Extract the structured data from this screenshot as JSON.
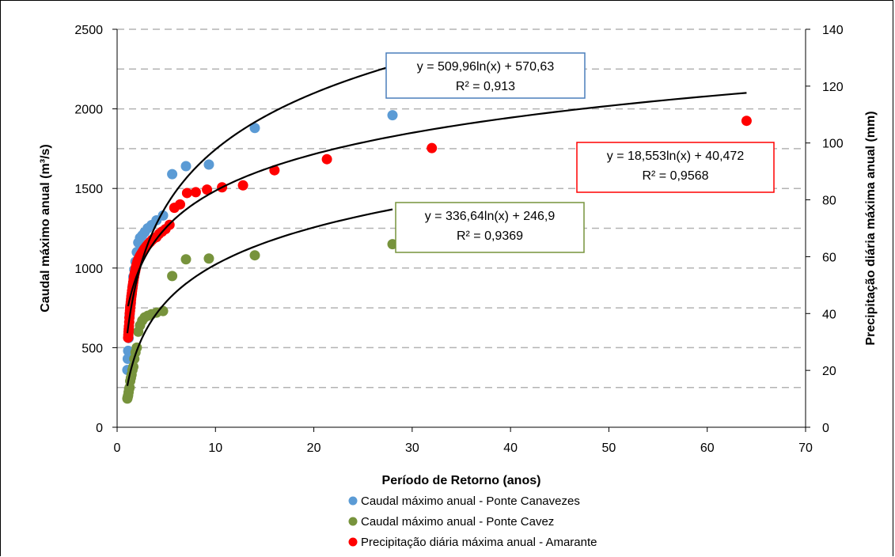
{
  "chart_data": {
    "type": "scatter",
    "xlabel": "Período de Retorno (anos)",
    "ylabel_left": "Caudal máximo anual (m³/s)",
    "ylabel_right": "Precipitação diária máxima anual (mm)",
    "xlim": [
      0,
      70
    ],
    "ylim_left": [
      0,
      2500
    ],
    "ylim_right": [
      0,
      140
    ],
    "x_ticks": [
      "0",
      "10",
      "20",
      "30",
      "40",
      "50",
      "60",
      "70"
    ],
    "y_left_ticks": [
      "0",
      "500",
      "1000",
      "1500",
      "2000",
      "2500"
    ],
    "y_right_ticks": [
      "0",
      "20",
      "40",
      "60",
      "80",
      "100",
      "120",
      "140"
    ],
    "grid": "horizontal dashed",
    "legend_position": "bottom",
    "series": [
      {
        "name": "Caudal máximo anual - Ponte Canavezes",
        "axis": "left",
        "color": "#5b9bd5",
        "points": [
          [
            28.0,
            1960
          ],
          [
            14.0,
            1880
          ],
          [
            9.33,
            1650
          ],
          [
            7.0,
            1640
          ],
          [
            5.6,
            1590
          ],
          [
            4.67,
            1330
          ],
          [
            4.0,
            1300
          ],
          [
            3.5,
            1270
          ],
          [
            3.11,
            1250
          ],
          [
            2.8,
            1225
          ],
          [
            2.55,
            1205
          ],
          [
            2.33,
            1190
          ],
          [
            2.15,
            1160
          ],
          [
            2.0,
            1100
          ],
          [
            1.87,
            1040
          ],
          [
            1.75,
            990
          ],
          [
            1.65,
            945
          ],
          [
            1.56,
            880
          ],
          [
            1.47,
            830
          ],
          [
            1.4,
            780
          ],
          [
            1.33,
            760
          ],
          [
            1.27,
            700
          ],
          [
            1.22,
            610
          ],
          [
            1.17,
            560
          ],
          [
            1.12,
            480
          ],
          [
            1.08,
            430
          ],
          [
            1.04,
            360
          ]
        ],
        "trend": {
          "a": 509.96,
          "b": 570.63,
          "x_range": [
            1.04,
            28
          ],
          "equation": "y = 509,96ln(x) + 570,63",
          "r2": "R² = 0,913",
          "box_color": "#4a7ebb"
        }
      },
      {
        "name": "Caudal máximo anual - Ponte Cavez",
        "axis": "left",
        "color": "#77933c",
        "points": [
          [
            28.0,
            1150
          ],
          [
            14.0,
            1080
          ],
          [
            9.33,
            1060
          ],
          [
            7.0,
            1055
          ],
          [
            5.6,
            950
          ],
          [
            4.67,
            730
          ],
          [
            4.0,
            720
          ],
          [
            3.5,
            710
          ],
          [
            3.11,
            700
          ],
          [
            2.8,
            690
          ],
          [
            2.55,
            670
          ],
          [
            2.33,
            640
          ],
          [
            2.15,
            600
          ],
          [
            2.0,
            500
          ],
          [
            1.87,
            470
          ],
          [
            1.75,
            430
          ],
          [
            1.65,
            380
          ],
          [
            1.56,
            360
          ],
          [
            1.47,
            330
          ],
          [
            1.4,
            310
          ],
          [
            1.33,
            290
          ],
          [
            1.27,
            250
          ],
          [
            1.22,
            240
          ],
          [
            1.17,
            220
          ],
          [
            1.12,
            200
          ],
          [
            1.08,
            190
          ],
          [
            1.04,
            180
          ]
        ],
        "trend": {
          "a": 336.64,
          "b": 246.9,
          "x_range": [
            1.04,
            28
          ],
          "equation": "y = 336,64ln(x) + 246,9",
          "r2": "R² = 0,9369",
          "box_color": "#77933c"
        }
      },
      {
        "name": "Precipitação diária máxima anual - Amarante",
        "axis": "right",
        "color": "#ff0000",
        "points": [
          [
            64.0,
            107.8
          ],
          [
            32.0,
            98.2
          ],
          [
            21.33,
            94.3
          ],
          [
            16.0,
            90.4
          ],
          [
            12.8,
            85.1
          ],
          [
            10.67,
            84.4
          ],
          [
            9.14,
            83.6
          ],
          [
            8.0,
            82.7
          ],
          [
            7.11,
            82.4
          ],
          [
            6.4,
            78.4
          ],
          [
            5.82,
            77.2
          ],
          [
            5.33,
            71.2
          ],
          [
            4.92,
            69.7
          ],
          [
            4.57,
            68.8
          ],
          [
            4.27,
            68.0
          ],
          [
            4.0,
            66.9
          ],
          [
            3.76,
            66.5
          ],
          [
            3.56,
            65.9
          ],
          [
            3.37,
            65.2
          ],
          [
            3.2,
            64.6
          ],
          [
            3.05,
            64.0
          ],
          [
            2.91,
            63.4
          ],
          [
            2.78,
            62.8
          ],
          [
            2.67,
            62.2
          ],
          [
            2.56,
            61.6
          ],
          [
            2.46,
            61.0
          ],
          [
            2.37,
            60.5
          ],
          [
            2.29,
            60.0
          ],
          [
            2.21,
            59.4
          ],
          [
            2.13,
            58.8
          ],
          [
            2.06,
            58.2
          ],
          [
            2.0,
            57.4
          ],
          [
            1.94,
            56.6
          ],
          [
            1.88,
            55.7
          ],
          [
            1.83,
            54.8
          ],
          [
            1.78,
            54.0
          ],
          [
            1.73,
            53.0
          ],
          [
            1.68,
            52.0
          ],
          [
            1.64,
            51.0
          ],
          [
            1.6,
            50.0
          ],
          [
            1.56,
            49.0
          ],
          [
            1.52,
            48.0
          ],
          [
            1.49,
            47.0
          ],
          [
            1.45,
            46.0
          ],
          [
            1.42,
            45.0
          ],
          [
            1.39,
            44.0
          ],
          [
            1.36,
            43.0
          ],
          [
            1.33,
            42.0
          ],
          [
            1.31,
            41.0
          ],
          [
            1.28,
            40.0
          ],
          [
            1.25,
            38.5
          ],
          [
            1.23,
            37.0
          ],
          [
            1.2,
            35.5
          ],
          [
            1.18,
            34.5
          ],
          [
            1.16,
            33.5
          ],
          [
            1.14,
            32.5
          ],
          [
            1.12,
            31.5
          ]
        ],
        "trend": {
          "a": 18.553,
          "b": 40.472,
          "x_range": [
            1.12,
            64
          ],
          "equation": "y = 18,553ln(x) + 40,472",
          "r2": "R² = 0,9568",
          "box_color": "#ff0000"
        }
      }
    ]
  }
}
